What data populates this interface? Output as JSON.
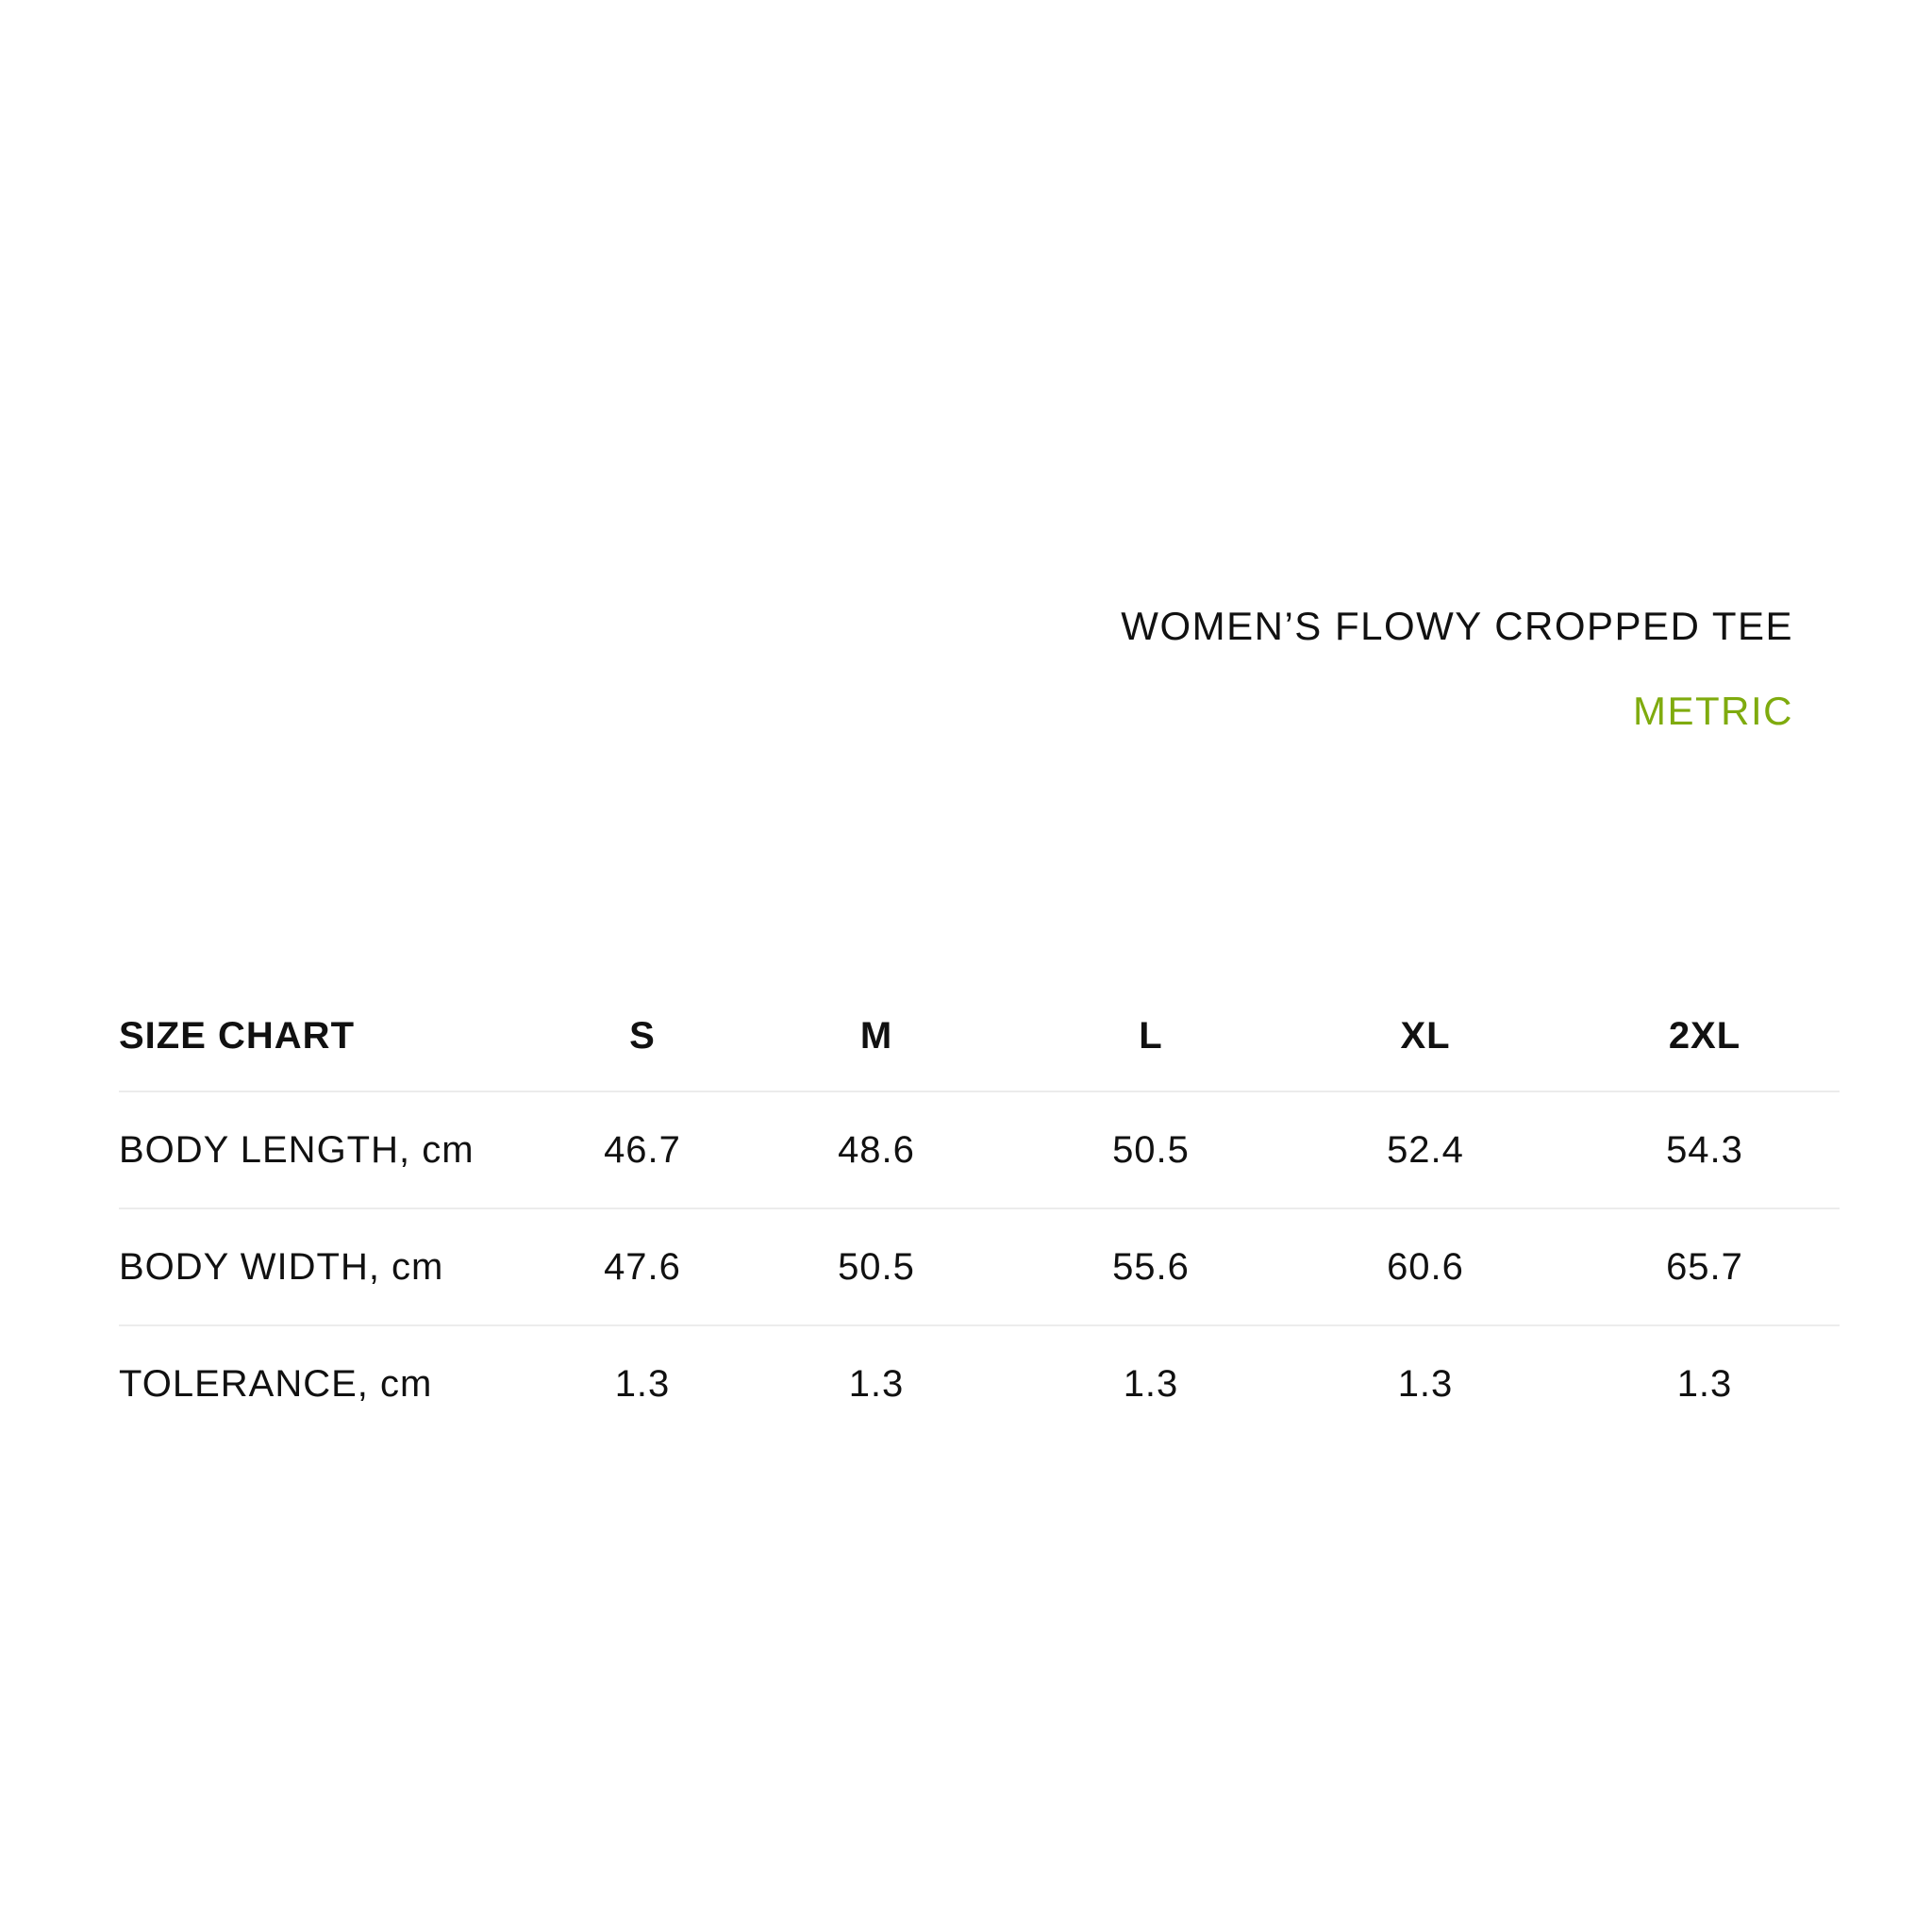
{
  "product_title": "WOMEN’S FLOWY CROPPED TEE",
  "unit_system": "METRIC",
  "accent_color": "#7fab0e",
  "table": {
    "header": "SIZE CHART",
    "sizes": [
      "S",
      "M",
      "L",
      "XL",
      "2XL"
    ],
    "rows": [
      {
        "label": "BODY LENGTH, cm",
        "values": [
          "46.7",
          "48.6",
          "50.5",
          "52.4",
          "54.3"
        ]
      },
      {
        "label": "BODY WIDTH, cm",
        "values": [
          "47.6",
          "50.5",
          "55.6",
          "60.6",
          "65.7"
        ]
      },
      {
        "label": "TOLERANCE, cm",
        "values": [
          "1.3",
          "1.3",
          "1.3",
          "1.3",
          "1.3"
        ]
      }
    ]
  }
}
